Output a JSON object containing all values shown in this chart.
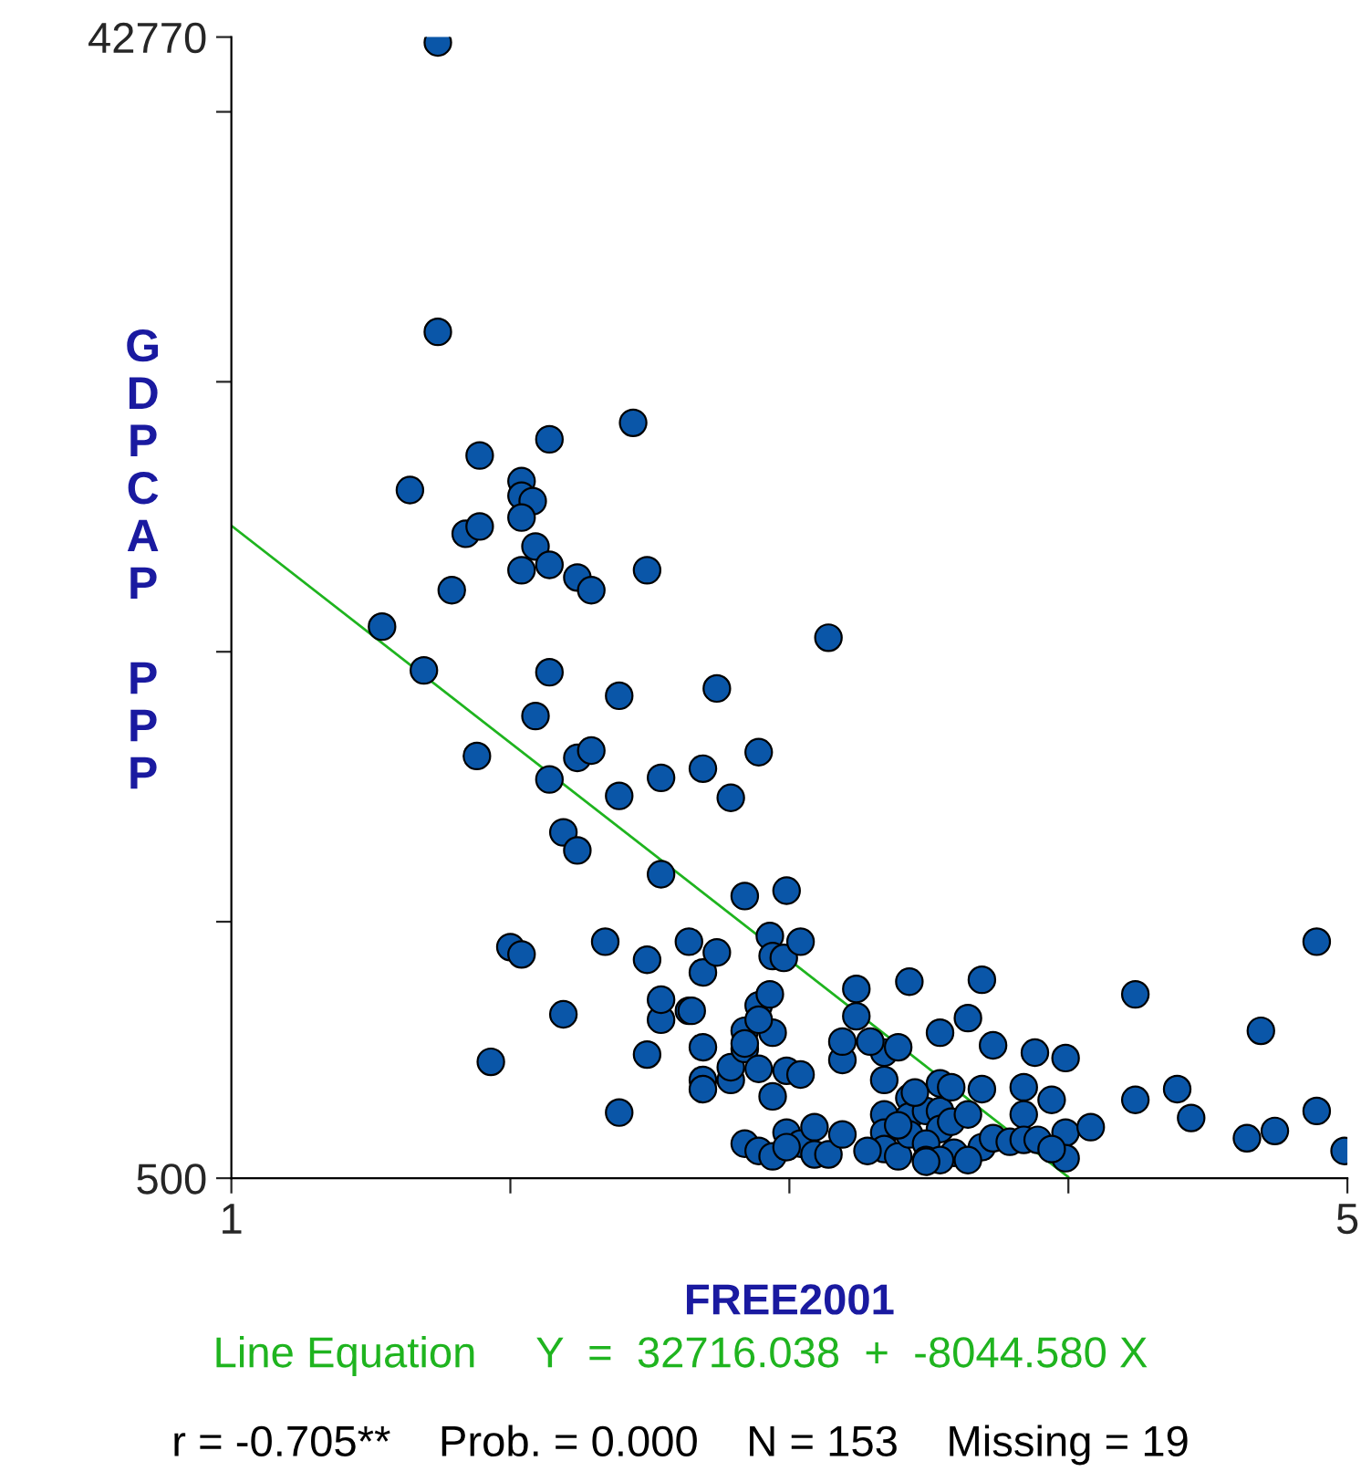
{
  "chart_data": {
    "type": "scatter",
    "xlabel": "FREE2001",
    "ylabel": "GDPCAP PPP",
    "xlim": [
      1,
      5
    ],
    "ylim": [
      500,
      42770
    ],
    "xticks": [
      1,
      {
        "value": 2,
        "label": null
      },
      {
        "value": 3,
        "label": null
      },
      {
        "value": 4,
        "label": null
      },
      5
    ],
    "yticks": [
      500,
      {
        "value": 10000,
        "label": null
      },
      {
        "value": 20000,
        "label": null
      },
      {
        "value": 30000,
        "label": null
      },
      {
        "value": 40000,
        "label": null
      },
      42770
    ],
    "grid": false,
    "legend": false,
    "annotations": [
      "Line Equation     Y  =  32716.038  +  -8044.580 X",
      "r = -0.705**    Prob. = 0.000    N = 153    Missing = 19"
    ],
    "series": [
      {
        "color": "#0a56a8",
        "marker": "circle",
        "x": [
          1.74,
          1.74,
          1.64,
          1.54,
          1.69,
          1.79,
          1.84,
          1.89,
          1.89,
          2.14,
          2.04,
          2.04,
          2.08,
          2.04,
          2.09,
          2.04,
          2.14,
          2.24,
          2.29,
          2.44,
          2.49,
          3.14,
          1.88,
          2.09,
          2.14,
          2.14,
          2.24,
          2.29,
          2.39,
          2.39,
          2.19,
          2.24,
          2.54,
          2.54,
          2.74,
          2.69,
          2.79,
          2.89,
          2.0,
          2.04,
          1.93,
          2.19,
          2.34,
          2.39,
          2.49,
          2.49,
          2.54,
          2.54,
          2.64,
          2.64,
          2.69,
          2.74,
          2.69,
          2.69,
          2.69,
          2.79,
          2.79,
          2.84,
          2.84,
          2.84,
          2.84,
          2.89,
          2.89,
          2.93,
          2.93,
          2.94,
          2.98,
          2.99,
          3.04,
          2.94,
          2.99,
          3.04,
          2.89,
          2.94,
          2.99,
          3.04,
          3.09,
          3.09,
          3.14,
          3.19,
          3.19,
          3.19,
          3.24,
          3.24,
          3.34,
          3.39,
          3.43,
          3.34,
          3.34,
          3.34,
          3.34,
          3.39,
          3.43,
          3.43,
          3.43,
          3.49,
          3.54,
          3.54,
          3.54,
          3.54,
          3.58,
          3.58,
          3.49,
          3.49,
          3.59,
          3.64,
          3.69,
          3.69,
          3.64,
          3.69,
          3.73,
          3.73,
          3.79,
          3.84,
          3.84,
          3.84,
          3.88,
          3.94,
          3.89,
          3.99,
          3.99,
          3.99,
          3.94,
          4.08,
          4.24,
          4.24,
          4.39,
          4.44,
          4.64,
          4.74,
          4.69,
          4.89,
          4.89,
          4.99,
          3.39,
          3.64,
          3.54,
          2.99,
          2.94,
          2.89,
          2.84,
          2.65,
          3.29,
          3.45,
          3.49,
          3.28
        ],
        "values": [
          42570,
          31850,
          25990,
          20930,
          19310,
          22280,
          24370,
          24640,
          27270,
          27870,
          26320,
          25780,
          25580,
          24970,
          23900,
          23020,
          23220,
          22750,
          22280,
          28480,
          23020,
          20520,
          16140,
          17620,
          19240,
          15270,
          16070,
          16340,
          18370,
          14660,
          13310,
          12640,
          11760,
          15330,
          18640,
          15670,
          14590,
          16280,
          9060,
          8790,
          4810,
          6570,
          9260,
          2930,
          8590,
          5080,
          6370,
          7110,
          9260,
          6700,
          8120,
          8860,
          5350,
          4140,
          3800,
          4140,
          4610,
          10950,
          5960,
          5290,
          1780,
          4550,
          6900,
          7310,
          9470,
          8730,
          8660,
          11150,
          9260,
          3530,
          4480,
          4340,
          1510,
          1310,
          2190,
          1780,
          1380,
          2390,
          1380,
          2120,
          4880,
          5560,
          6500,
          7510,
          5150,
          5350,
          7780,
          4140,
          2860,
          2190,
          1580,
          1310,
          3470,
          2790,
          2120,
          2990,
          4010,
          2990,
          2320,
          5890,
          3870,
          2590,
          1780,
          1170,
          1440,
          6430,
          7850,
          3800,
          2860,
          1650,
          1980,
          5420,
          1850,
          3870,
          2860,
          1920,
          5150,
          3400,
          1920,
          4950,
          2190,
          1240,
          1580,
          2390,
          7310,
          3400,
          3800,
          2730,
          1980,
          2250,
          5960,
          9260,
          2990,
          1510,
          2460,
          1170,
          1170,
          1650,
          5890,
          6370,
          5490,
          6700,
          5560,
          3670,
          1110,
          1510
        ]
      },
      {
        "type": "line",
        "color": "#1fb41f",
        "x": [
          1,
          4.0
        ],
        "values": [
          24670,
          540
        ]
      }
    ]
  }
}
